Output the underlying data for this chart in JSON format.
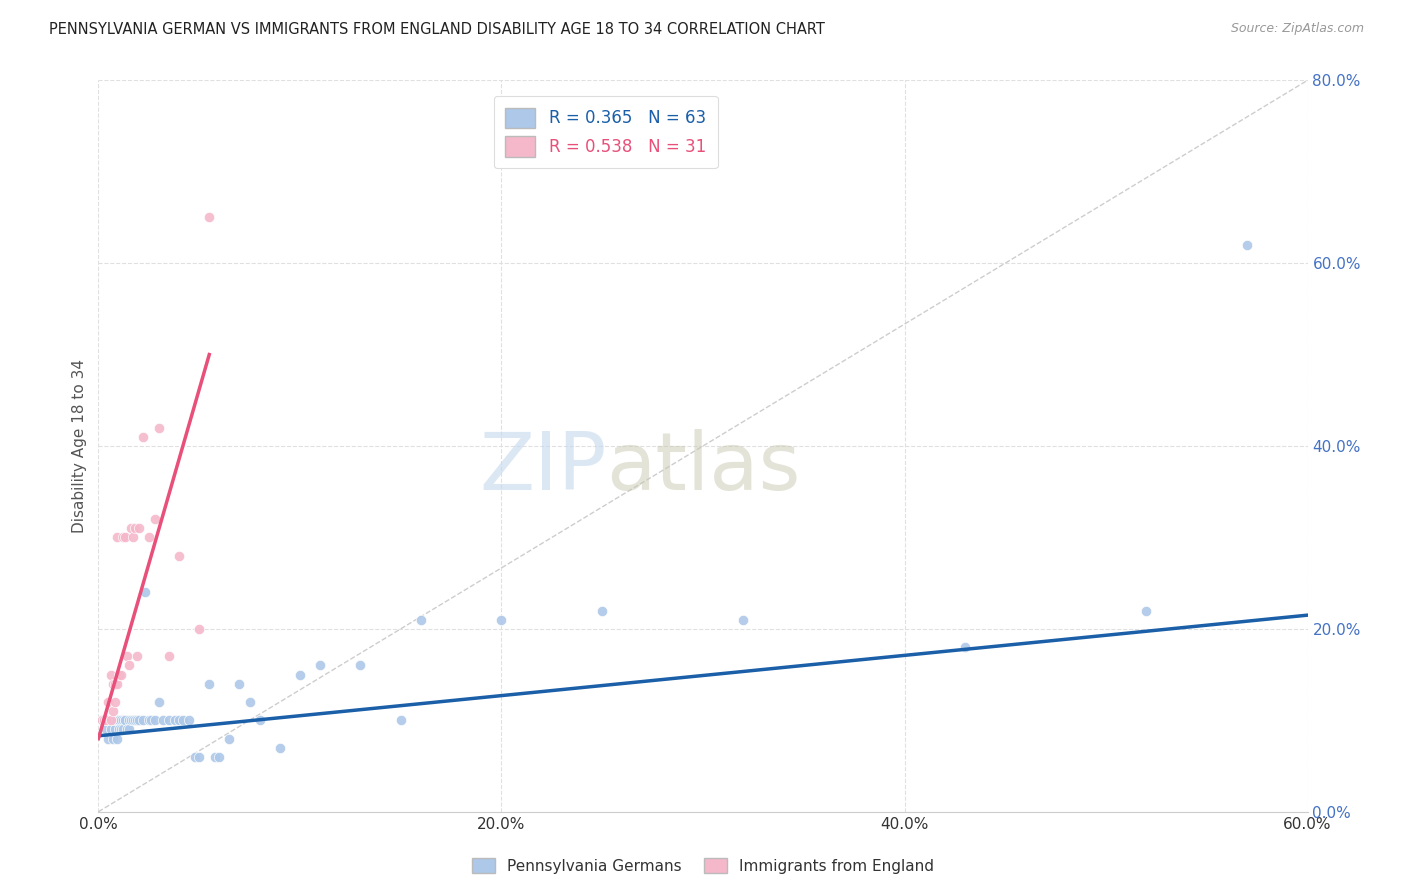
{
  "title": "PENNSYLVANIA GERMAN VS IMMIGRANTS FROM ENGLAND DISABILITY AGE 18 TO 34 CORRELATION CHART",
  "source": "Source: ZipAtlas.com",
  "ylabel": "Disability Age 18 to 34",
  "xlim": [
    0.0,
    0.6
  ],
  "ylim": [
    0.0,
    0.8
  ],
  "xtick_vals": [
    0.0,
    0.2,
    0.4,
    0.6
  ],
  "ytick_vals": [
    0.0,
    0.2,
    0.4,
    0.6,
    0.8
  ],
  "blue_R": 0.365,
  "blue_N": 63,
  "pink_R": 0.538,
  "pink_N": 31,
  "blue_color": "#adc8e8",
  "pink_color": "#f5b8cb",
  "blue_line_color": "#1a5fa8",
  "pink_line_color": "#e8507a",
  "diagonal_color": "#c8c8c8",
  "watermark_zip": "ZIP",
  "watermark_atlas": "atlas",
  "legend_label_blue": "Pennsylvania Germans",
  "legend_label_pink": "Immigrants from England",
  "blue_scatter_x": [
    0.002,
    0.003,
    0.004,
    0.005,
    0.005,
    0.006,
    0.006,
    0.007,
    0.007,
    0.008,
    0.008,
    0.009,
    0.009,
    0.01,
    0.01,
    0.01,
    0.011,
    0.011,
    0.012,
    0.012,
    0.013,
    0.013,
    0.014,
    0.015,
    0.015,
    0.016,
    0.017,
    0.018,
    0.019,
    0.02,
    0.022,
    0.023,
    0.025,
    0.026,
    0.028,
    0.03,
    0.032,
    0.035,
    0.038,
    0.04,
    0.042,
    0.045,
    0.048,
    0.05,
    0.055,
    0.058,
    0.06,
    0.065,
    0.07,
    0.075,
    0.08,
    0.09,
    0.1,
    0.11,
    0.13,
    0.15,
    0.16,
    0.2,
    0.25,
    0.32,
    0.43,
    0.52,
    0.57
  ],
  "blue_scatter_y": [
    0.1,
    0.1,
    0.09,
    0.08,
    0.1,
    0.1,
    0.09,
    0.08,
    0.1,
    0.09,
    0.1,
    0.1,
    0.08,
    0.1,
    0.1,
    0.09,
    0.1,
    0.09,
    0.1,
    0.09,
    0.1,
    0.1,
    0.09,
    0.1,
    0.09,
    0.1,
    0.1,
    0.1,
    0.1,
    0.1,
    0.1,
    0.24,
    0.1,
    0.1,
    0.1,
    0.12,
    0.1,
    0.1,
    0.1,
    0.1,
    0.1,
    0.1,
    0.06,
    0.06,
    0.14,
    0.06,
    0.06,
    0.08,
    0.14,
    0.12,
    0.1,
    0.07,
    0.15,
    0.16,
    0.16,
    0.1,
    0.21,
    0.21,
    0.22,
    0.21,
    0.18,
    0.22,
    0.62
  ],
  "pink_scatter_x": [
    0.002,
    0.003,
    0.004,
    0.005,
    0.006,
    0.006,
    0.007,
    0.007,
    0.008,
    0.008,
    0.009,
    0.009,
    0.01,
    0.011,
    0.012,
    0.013,
    0.014,
    0.015,
    0.016,
    0.017,
    0.018,
    0.019,
    0.02,
    0.022,
    0.025,
    0.028,
    0.03,
    0.035,
    0.04,
    0.05,
    0.055
  ],
  "pink_scatter_y": [
    0.1,
    0.1,
    0.1,
    0.12,
    0.1,
    0.15,
    0.11,
    0.14,
    0.12,
    0.14,
    0.14,
    0.3,
    0.15,
    0.15,
    0.3,
    0.3,
    0.17,
    0.16,
    0.31,
    0.3,
    0.31,
    0.17,
    0.31,
    0.41,
    0.3,
    0.32,
    0.42,
    0.17,
    0.28,
    0.2,
    0.65
  ],
  "blue_line_x0": 0.0,
  "blue_line_x1": 0.6,
  "blue_line_y0": 0.083,
  "blue_line_y1": 0.215,
  "pink_line_x0": 0.0,
  "pink_line_x1": 0.055,
  "pink_line_y0": 0.08,
  "pink_line_y1": 0.5
}
